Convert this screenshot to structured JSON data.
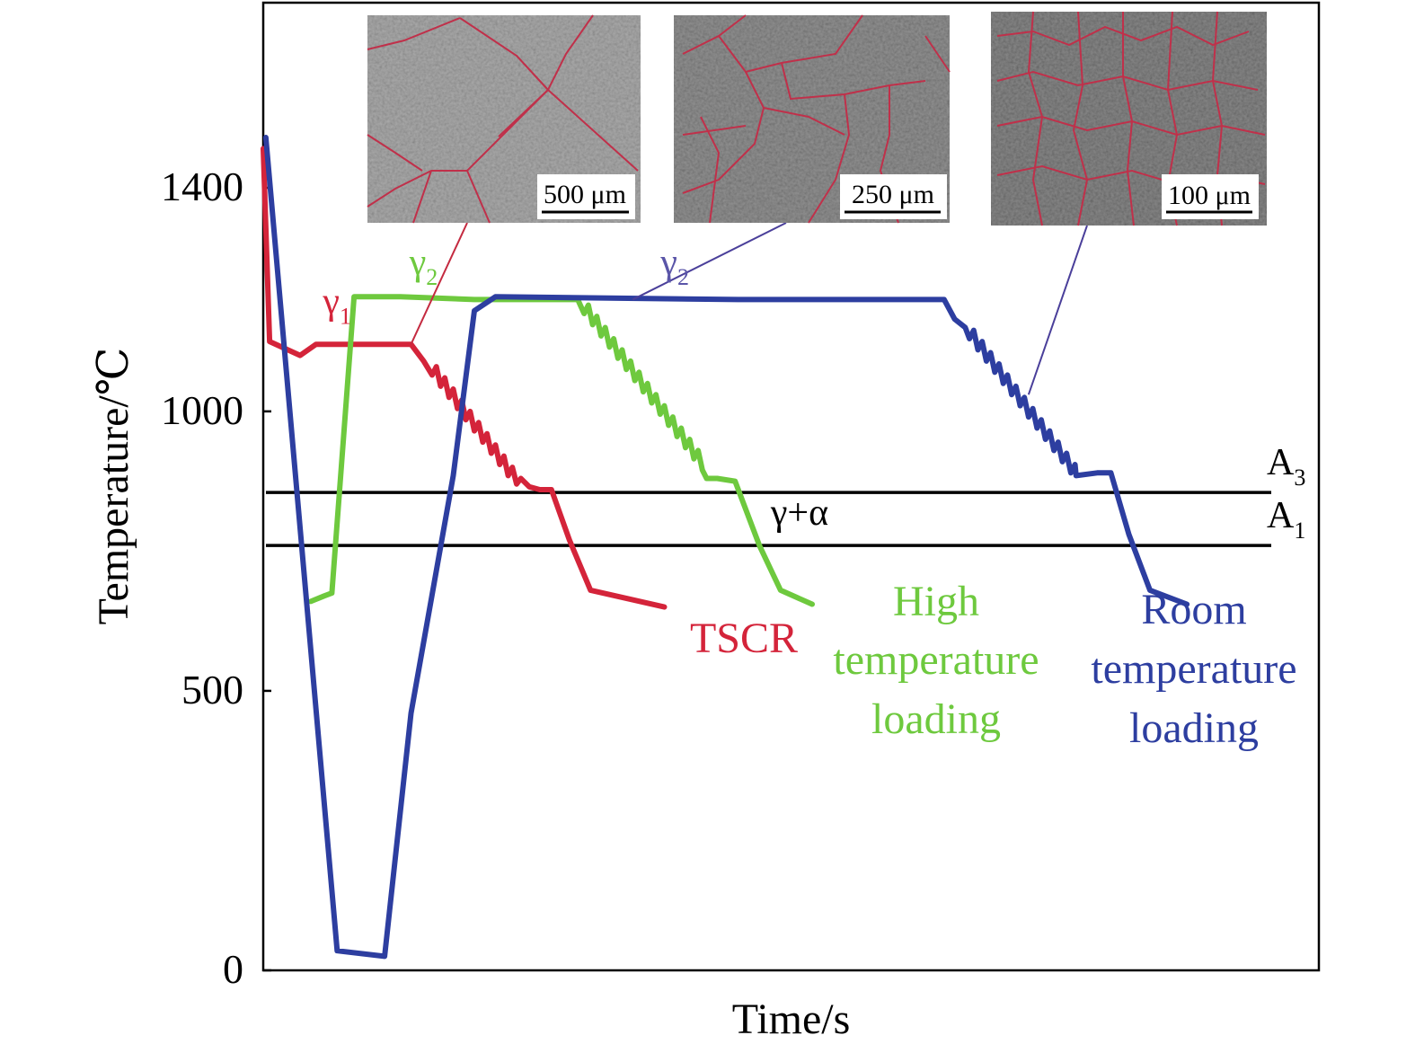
{
  "chart_data": {
    "type": "line",
    "xlabel": "Time/s",
    "ylabel": "Temperature/℃",
    "ylim": [
      0,
      1400
    ],
    "yticks": [
      {
        "value": 0,
        "label": "0"
      },
      {
        "value": 500,
        "label": "500"
      },
      {
        "value": 1000,
        "label": "1000"
      },
      {
        "value": 1400,
        "label": "1400"
      }
    ],
    "grid": false,
    "legend": "none",
    "reference_lines": [
      {
        "name": "A3",
        "base": "A",
        "sub": "3",
        "y": 855
      },
      {
        "name": "A1",
        "base": "A",
        "sub": "1",
        "y": 760
      }
    ],
    "region_label": "γ+α",
    "series": [
      {
        "name": "TSCR",
        "color": "#d4243a",
        "points": [
          [
            0.0,
            1470
          ],
          [
            0.6,
            1125
          ],
          [
            3.5,
            1100
          ],
          [
            5.0,
            1120
          ],
          [
            14.0,
            1120
          ],
          [
            15.2,
            1090
          ],
          [
            16.0,
            1065
          ],
          [
            16.4,
            1080
          ],
          [
            16.8,
            1045
          ],
          [
            17.2,
            1060
          ],
          [
            17.6,
            1025
          ],
          [
            18.0,
            1040
          ],
          [
            18.4,
            1005
          ],
          [
            18.8,
            1020
          ],
          [
            19.2,
            985
          ],
          [
            19.6,
            1000
          ],
          [
            20.0,
            965
          ],
          [
            20.4,
            980
          ],
          [
            20.8,
            945
          ],
          [
            21.2,
            960
          ],
          [
            21.6,
            925
          ],
          [
            22.0,
            940
          ],
          [
            22.4,
            905
          ],
          [
            22.8,
            920
          ],
          [
            23.2,
            885
          ],
          [
            23.6,
            900
          ],
          [
            24.0,
            870
          ],
          [
            24.4,
            880
          ],
          [
            25.2,
            865
          ],
          [
            26.2,
            860
          ],
          [
            27.3,
            860
          ],
          [
            29.0,
            770
          ],
          [
            31.0,
            680
          ],
          [
            38.0,
            650
          ]
        ]
      },
      {
        "name": "High temperature loading",
        "label_lines": [
          "High",
          "temperature",
          "loading"
        ],
        "color": "#6ec93e",
        "points": [
          [
            4.5,
            660
          ],
          [
            5.8,
            670
          ],
          [
            6.5,
            675
          ],
          [
            8.6,
            1205
          ],
          [
            13.0,
            1205
          ],
          [
            20.0,
            1200
          ],
          [
            27.0,
            1200
          ],
          [
            29.8,
            1200
          ],
          [
            30.4,
            1175
          ],
          [
            30.8,
            1190
          ],
          [
            31.2,
            1155
          ],
          [
            31.6,
            1170
          ],
          [
            32.0,
            1135
          ],
          [
            32.4,
            1150
          ],
          [
            32.8,
            1115
          ],
          [
            33.2,
            1130
          ],
          [
            33.6,
            1095
          ],
          [
            34.0,
            1110
          ],
          [
            34.4,
            1075
          ],
          [
            34.8,
            1090
          ],
          [
            35.2,
            1055
          ],
          [
            35.6,
            1070
          ],
          [
            36.0,
            1035
          ],
          [
            36.4,
            1050
          ],
          [
            36.8,
            1015
          ],
          [
            37.2,
            1030
          ],
          [
            37.6,
            995
          ],
          [
            38.0,
            1010
          ],
          [
            38.4,
            975
          ],
          [
            38.8,
            990
          ],
          [
            39.2,
            955
          ],
          [
            39.6,
            970
          ],
          [
            40.0,
            935
          ],
          [
            40.4,
            950
          ],
          [
            40.8,
            915
          ],
          [
            41.2,
            930
          ],
          [
            41.6,
            895
          ],
          [
            42.0,
            880
          ],
          [
            43.0,
            880
          ],
          [
            44.7,
            875
          ],
          [
            47.0,
            760
          ],
          [
            49.0,
            680
          ],
          [
            52.0,
            655
          ]
        ]
      },
      {
        "name": "Room temperature loading",
        "label_lines": [
          "Room",
          "temperature",
          "loading"
        ],
        "color": "#2d3ea0",
        "points": [
          [
            0.25,
            1490
          ],
          [
            7.0,
            35
          ],
          [
            11.5,
            25
          ],
          [
            14.0,
            460
          ],
          [
            18.0,
            885
          ],
          [
            20.0,
            1180
          ],
          [
            22.0,
            1205
          ],
          [
            45.0,
            1200
          ],
          [
            55.0,
            1200
          ],
          [
            64.5,
            1200
          ],
          [
            65.5,
            1165
          ],
          [
            66.5,
            1150
          ],
          [
            66.9,
            1130
          ],
          [
            67.3,
            1145
          ],
          [
            67.7,
            1110
          ],
          [
            68.1,
            1125
          ],
          [
            68.5,
            1090
          ],
          [
            68.9,
            1105
          ],
          [
            69.3,
            1070
          ],
          [
            69.7,
            1085
          ],
          [
            70.1,
            1050
          ],
          [
            70.5,
            1065
          ],
          [
            70.9,
            1030
          ],
          [
            71.3,
            1045
          ],
          [
            71.7,
            1010
          ],
          [
            72.1,
            1025
          ],
          [
            72.5,
            990
          ],
          [
            72.9,
            1005
          ],
          [
            73.3,
            970
          ],
          [
            73.7,
            985
          ],
          [
            74.1,
            950
          ],
          [
            74.5,
            965
          ],
          [
            74.9,
            930
          ],
          [
            75.3,
            945
          ],
          [
            75.7,
            910
          ],
          [
            76.1,
            925
          ],
          [
            76.5,
            890
          ],
          [
            76.9,
            905
          ],
          [
            77.0,
            885
          ],
          [
            79.0,
            890
          ],
          [
            80.3,
            890
          ],
          [
            82.0,
            780
          ],
          [
            84.0,
            680
          ],
          [
            87.5,
            655
          ]
        ]
      }
    ],
    "phase_labels": [
      {
        "base": "γ",
        "sub": "1",
        "color": "#d4243a",
        "x": 6.5,
        "y": 1175
      },
      {
        "base": "γ",
        "sub": "2",
        "color": "#6ec93e",
        "x": 14.7,
        "y": 1245
      },
      {
        "base": "γ",
        "sub": "2",
        "color": "#5a55a8",
        "x": 38.5,
        "y": 1245
      }
    ],
    "insets": [
      {
        "scale_bar": "500 μm",
        "grain_size": "coarse",
        "points_to": {
          "series": "TSCR",
          "x": 14.0,
          "y": 1120
        }
      },
      {
        "scale_bar": "250 μm",
        "grain_size": "medium",
        "points_to": {
          "series": "Room temperature loading",
          "x": 35.0,
          "y": 1200
        }
      },
      {
        "scale_bar": "100 μm",
        "grain_size": "fine",
        "points_to": {
          "series": "Room temperature loading",
          "x": 72.5,
          "y": 1030
        }
      }
    ]
  }
}
